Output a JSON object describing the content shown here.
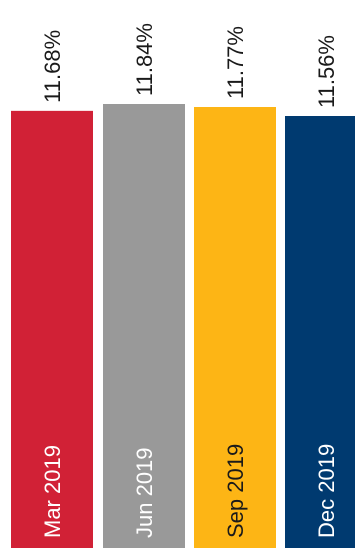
{
  "chart_data": {
    "type": "bar",
    "categories": [
      "Mar 2019",
      "Jun 2019",
      "Sep 2019",
      "Dec 2019"
    ],
    "values": [
      11.68,
      11.84,
      11.77,
      11.56
    ],
    "value_labels": [
      "11.68%",
      "11.84%",
      "11.77%",
      "11.56%"
    ],
    "unit": "%",
    "colors": [
      "#d12136",
      "#999999",
      "#fdb515",
      "#003a70"
    ],
    "label_colors": [
      "#ffffff",
      "#ffffff",
      "#1a1a1a",
      "#ffffff"
    ],
    "grid": false,
    "legend": "none",
    "title": "",
    "xlabel": "",
    "ylabel": ""
  }
}
